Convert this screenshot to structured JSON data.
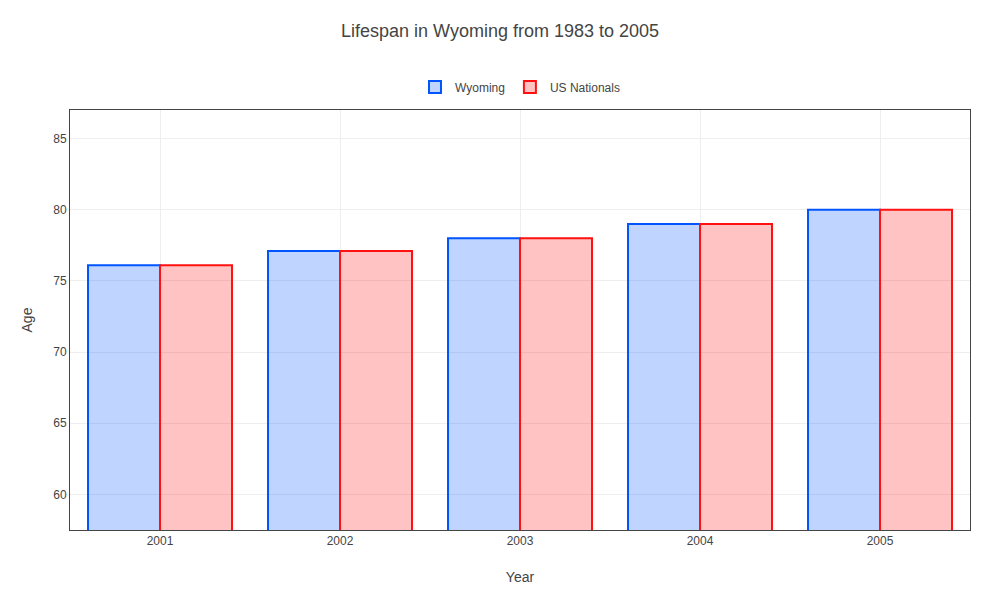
{
  "chart_data": {
    "type": "bar",
    "title": "Lifespan in Wyoming from 1983 to 2005",
    "x_label": "Year",
    "y_label": "Age",
    "categories": [
      "2001",
      "2002",
      "2003",
      "2004",
      "2005"
    ],
    "series": [
      {
        "name": "Wyoming",
        "color": "#0055ff",
        "values": [
          76.1,
          77.1,
          78.0,
          79.0,
          80.0
        ]
      },
      {
        "name": "US Nationals",
        "color": "#ff1111",
        "values": [
          76.1,
          77.1,
          78.0,
          79.0,
          80.0
        ]
      }
    ],
    "ylim": [
      57.5,
      87
    ],
    "yticks": [
      60,
      65,
      70,
      75,
      80,
      85
    ],
    "grid": true,
    "legend": "top"
  }
}
